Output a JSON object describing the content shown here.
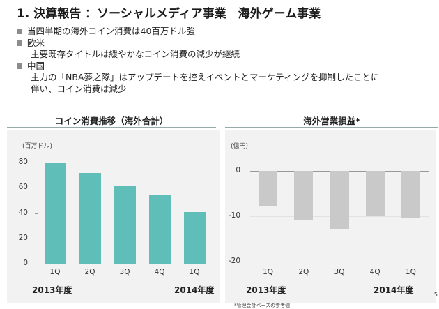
{
  "header": {
    "title": "1. 決算報告 ：ソーシャルメディア事業　海外ゲーム事業"
  },
  "bullets": [
    {
      "text": "当四半期の海外コイン消費は40百万ドル強",
      "subs": []
    },
    {
      "text": "欧米",
      "subs": [
        "主要既存タイトルは緩やかなコイン消費の減少が継続"
      ]
    },
    {
      "text": "中国",
      "subs": [
        "主力の「NBA夢之隊」はアップデートを控えイベントとマーケティングを抑制したことに",
        "伴い、コイン消費は減少"
      ]
    }
  ],
  "colors": {
    "teal": "#5fbfb8",
    "grey": "#c9c9c9"
  },
  "chart_data": [
    {
      "type": "bar",
      "title": "コイン消費推移（海外合計）",
      "ylabel": "(百万ドル)",
      "categories": [
        "1Q",
        "2Q",
        "3Q",
        "4Q",
        "1Q"
      ],
      "values": [
        80,
        72,
        61,
        54,
        41
      ],
      "ylim": [
        0,
        85
      ],
      "yticks": [
        "0",
        "20",
        "40",
        "60",
        "80"
      ],
      "year_labels": [
        "2013年度",
        "2014年度"
      ],
      "grid": false
    },
    {
      "type": "bar",
      "title": "海外営業損益*",
      "ylabel": "(億円)",
      "categories": [
        "1Q",
        "2Q",
        "3Q",
        "4Q",
        "1Q"
      ],
      "values": [
        -7.8,
        -10.8,
        -12.9,
        -9.9,
        -10.3
      ],
      "ylim": [
        -20,
        2
      ],
      "yticks": [
        "0",
        "-10",
        "-20"
      ],
      "year_labels": [
        "2013年度",
        "2014年度"
      ],
      "grid": true
    }
  ],
  "footnote": "*管理会計ベースの参考値",
  "page_number": "5"
}
